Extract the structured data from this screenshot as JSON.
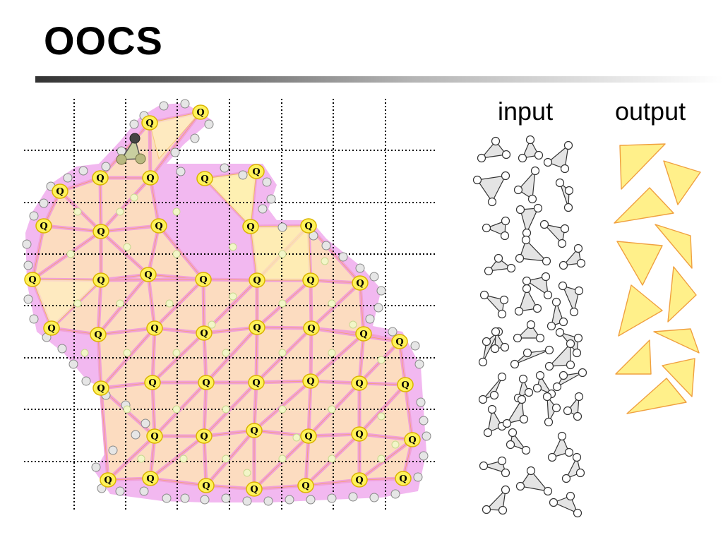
{
  "slide": {
    "title": "OOCS"
  },
  "labels": {
    "input": "input",
    "output": "output",
    "vertex": "Q"
  },
  "colors": {
    "mesh_fill": "#fcdcc0",
    "mesh_edge": "#f1a0d8",
    "halo": "#f2b8f0",
    "vertex_fill": "#fff25a",
    "vertex_stroke": "#d9b400",
    "output_fill": "#fff08a",
    "output_stroke": "#f0a040",
    "input_fill": "#e4e4e4"
  },
  "grid": {
    "columns": 7,
    "rows": 7
  }
}
